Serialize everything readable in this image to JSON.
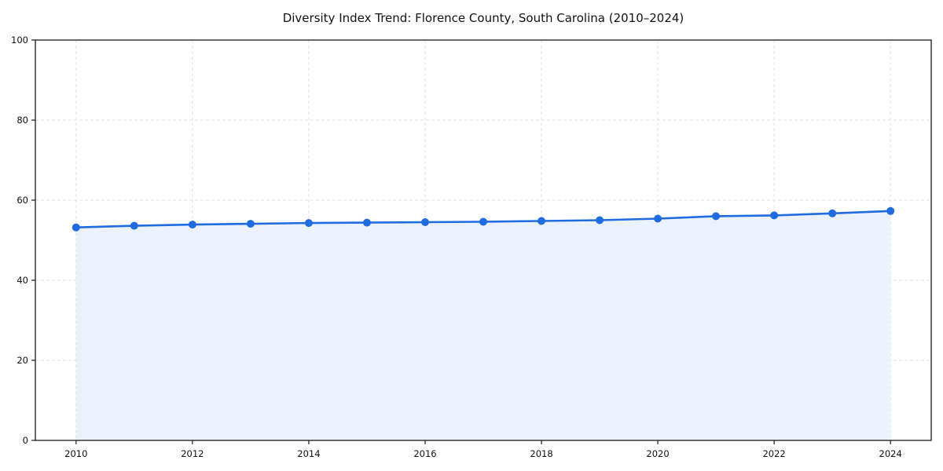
{
  "chart_data": {
    "type": "area",
    "title": "Diversity Index Trend: Florence County, South Carolina (2010–2024)",
    "xlabel": "",
    "ylabel": "",
    "x": [
      2010,
      2011,
      2012,
      2013,
      2014,
      2015,
      2016,
      2017,
      2018,
      2019,
      2020,
      2021,
      2022,
      2023,
      2024
    ],
    "series": [
      {
        "name": "Diversity Index",
        "values": [
          53.2,
          53.6,
          53.9,
          54.1,
          54.3,
          54.4,
          54.5,
          54.6,
          54.8,
          55.0,
          55.4,
          56.0,
          56.2,
          56.7,
          57.3
        ]
      }
    ],
    "xticks": [
      2010,
      2012,
      2014,
      2016,
      2018,
      2020,
      2022,
      2024
    ],
    "yticks": [
      0,
      20,
      40,
      60,
      80,
      100
    ],
    "xlim": [
      2009.3,
      2024.7
    ],
    "ylim": [
      0,
      100
    ],
    "grid": true,
    "grid_style": "dashed",
    "legend": "none",
    "marker": "circle",
    "colors": {
      "line": "#1f6be0",
      "fill": "#e7f0fc",
      "grid": "#e0e0e0",
      "axis": "#1a1a1a",
      "text": "#111111",
      "background": "#ffffff"
    }
  }
}
